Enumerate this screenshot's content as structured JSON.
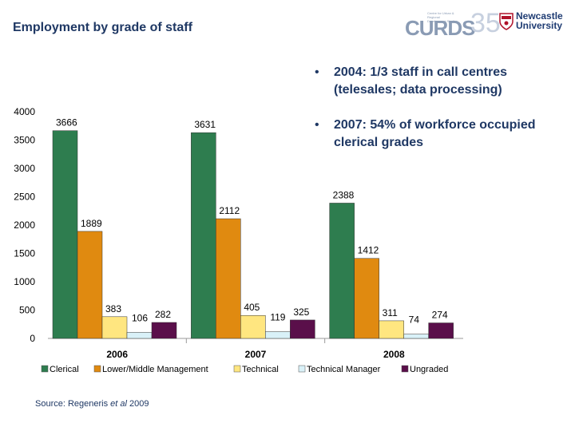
{
  "header": {
    "title": "Employment by grade of staff"
  },
  "logos": {
    "curds": "CURDS",
    "curds_35": "35",
    "curds_small": "Centre for Urban & Regional Development Studies",
    "university_line1": "Newcastle",
    "university_line2": "University"
  },
  "bullets": [
    {
      "marker": "•",
      "text": "2004:  1/3 staff in call centres (telesales; data processing)"
    },
    {
      "marker": "•",
      "text": "2007: 54% of workforce occupied clerical grades"
    }
  ],
  "source": {
    "prefix": "Source: Regeneris ",
    "italic": "et al",
    "suffix": " 2009"
  },
  "colors": {
    "text_navy": "#1f3864",
    "clerical": "#2e7d4f",
    "lower_middle_management": "#e08a10",
    "technical": "#ffe680",
    "technical_manager": "#d9f1f8",
    "ungraded": "#5a0f4a"
  },
  "chart_data": {
    "type": "bar",
    "categories": [
      "2006",
      "2007",
      "2008"
    ],
    "series": [
      {
        "name": "Clerical",
        "values": [
          3666,
          3631,
          2388
        ],
        "color": "#2e7d4f"
      },
      {
        "name": "Lower/Middle Management",
        "values": [
          1889,
          2112,
          1412
        ],
        "color": "#e08a10"
      },
      {
        "name": "Technical",
        "values": [
          383,
          405,
          311
        ],
        "color": "#ffe680"
      },
      {
        "name": "Technical Manager",
        "values": [
          106,
          119,
          74
        ],
        "color": "#d9f1f8"
      },
      {
        "name": "Ungraded",
        "values": [
          282,
          325,
          274
        ],
        "color": "#5a0f4a"
      }
    ],
    "ylim": [
      0,
      4000
    ],
    "yticks": [
      0,
      500,
      1000,
      1500,
      2000,
      2500,
      3000,
      3500,
      4000
    ],
    "data_labels": true,
    "legend_position": "bottom",
    "grid": false
  }
}
